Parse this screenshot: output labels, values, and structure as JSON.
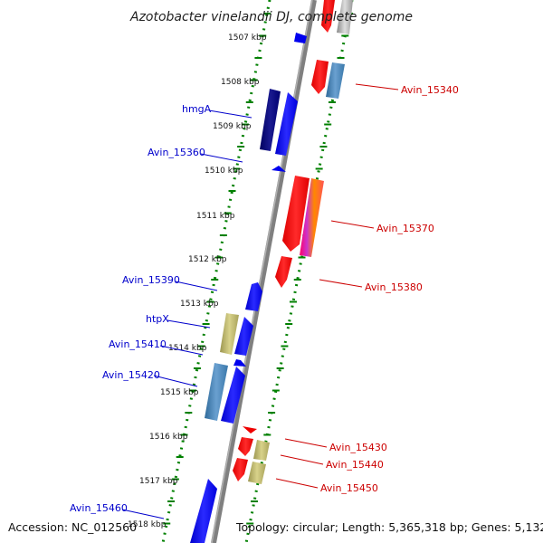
{
  "title": "Azotobacter vinelandii DJ, complete genome",
  "footer": {
    "accession": "Accession: NC_012560",
    "topology": "Topology: circular; Length: 5,365,318 bp; Genes: 5,132"
  },
  "kbp_labels": [
    "1507 kbp",
    "1508 kbp",
    "1509 kbp",
    "1510 kbp",
    "1511 kbp",
    "1512 kbp",
    "1513 kbp",
    "1514 kbp",
    "1515 kbp",
    "1516 kbp",
    "1517 kbp",
    "1518 kbp"
  ],
  "gene_labels_left": [
    "hmgA",
    "Avin_15360",
    "Avin_15390",
    "htpX",
    "Avin_15410",
    "Avin_15420",
    "Avin_15460"
  ],
  "gene_labels_right": [
    "Avin_15340",
    "Avin_15370",
    "Avin_15380",
    "Avin_15430",
    "Avin_15440",
    "Avin_15450"
  ],
  "colors": {
    "blue": "#0000ff",
    "navy": "#000080",
    "steelblue": "#4682b4",
    "red": "#ff0000",
    "khaki": "#bdb76b",
    "green_dots": "#008000",
    "axis": "#808080",
    "label_blue": "#0000cc",
    "label_red": "#cc0000"
  }
}
